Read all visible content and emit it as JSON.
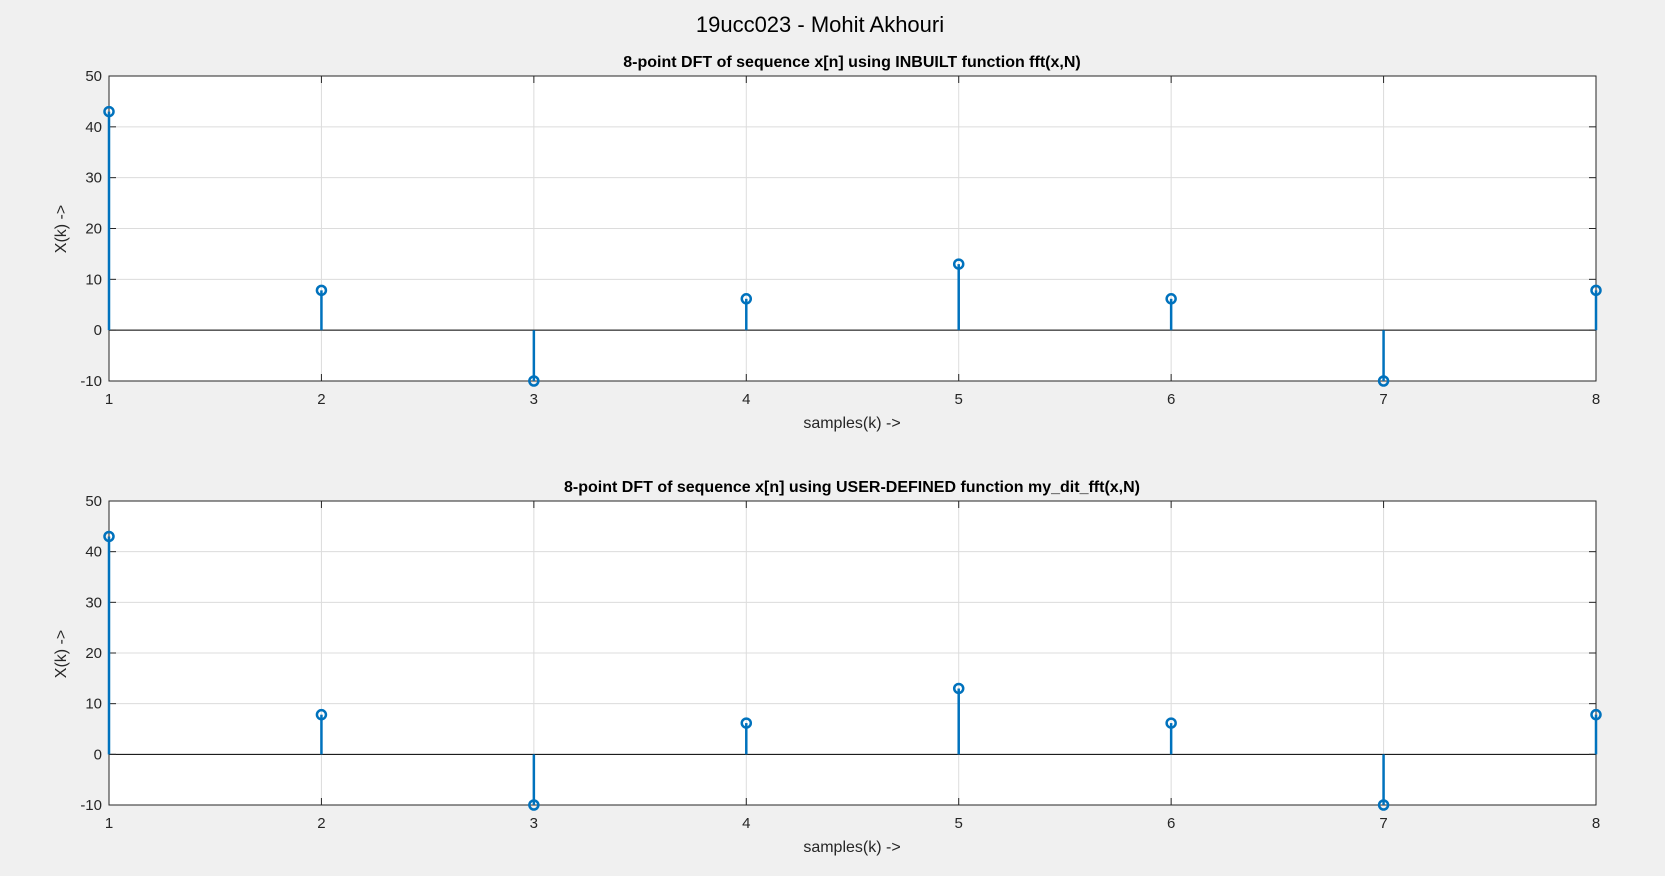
{
  "figure_title": "19ucc023 - Mohit Akhouri",
  "colors": {
    "stem": "#0072bd",
    "grid": "#dcdcdc",
    "axes": "#262626",
    "background": "#f0f0f0",
    "plot_bg": "#ffffff"
  },
  "chart_data": [
    {
      "type": "stem",
      "title": "8-point DFT of sequence x[n] using INBUILT function fft(x,N)",
      "xlabel": "samples(k) ->",
      "ylabel": "X(k) ->",
      "x": [
        1,
        2,
        3,
        4,
        5,
        6,
        7,
        8
      ],
      "y": [
        43,
        7.83,
        -10,
        6.17,
        13,
        6.17,
        -10,
        7.83
      ],
      "xlim": [
        1,
        8
      ],
      "ylim": [
        -10,
        50
      ],
      "xticks": [
        1,
        2,
        3,
        4,
        5,
        6,
        7,
        8
      ],
      "yticks": [
        -10,
        0,
        10,
        20,
        30,
        40,
        50
      ],
      "grid": true
    },
    {
      "type": "stem",
      "title": "8-point DFT of sequence x[n] using USER-DEFINED function my_dit_fft(x,N)",
      "xlabel": "samples(k) ->",
      "ylabel": "X(k) ->",
      "x": [
        1,
        2,
        3,
        4,
        5,
        6,
        7,
        8
      ],
      "y": [
        43,
        7.83,
        -10,
        6.17,
        13,
        6.17,
        -10,
        7.83
      ],
      "xlim": [
        1,
        8
      ],
      "ylim": [
        -10,
        50
      ],
      "xticks": [
        1,
        2,
        3,
        4,
        5,
        6,
        7,
        8
      ],
      "yticks": [
        -10,
        0,
        10,
        20,
        30,
        40,
        50
      ],
      "grid": true
    }
  ]
}
